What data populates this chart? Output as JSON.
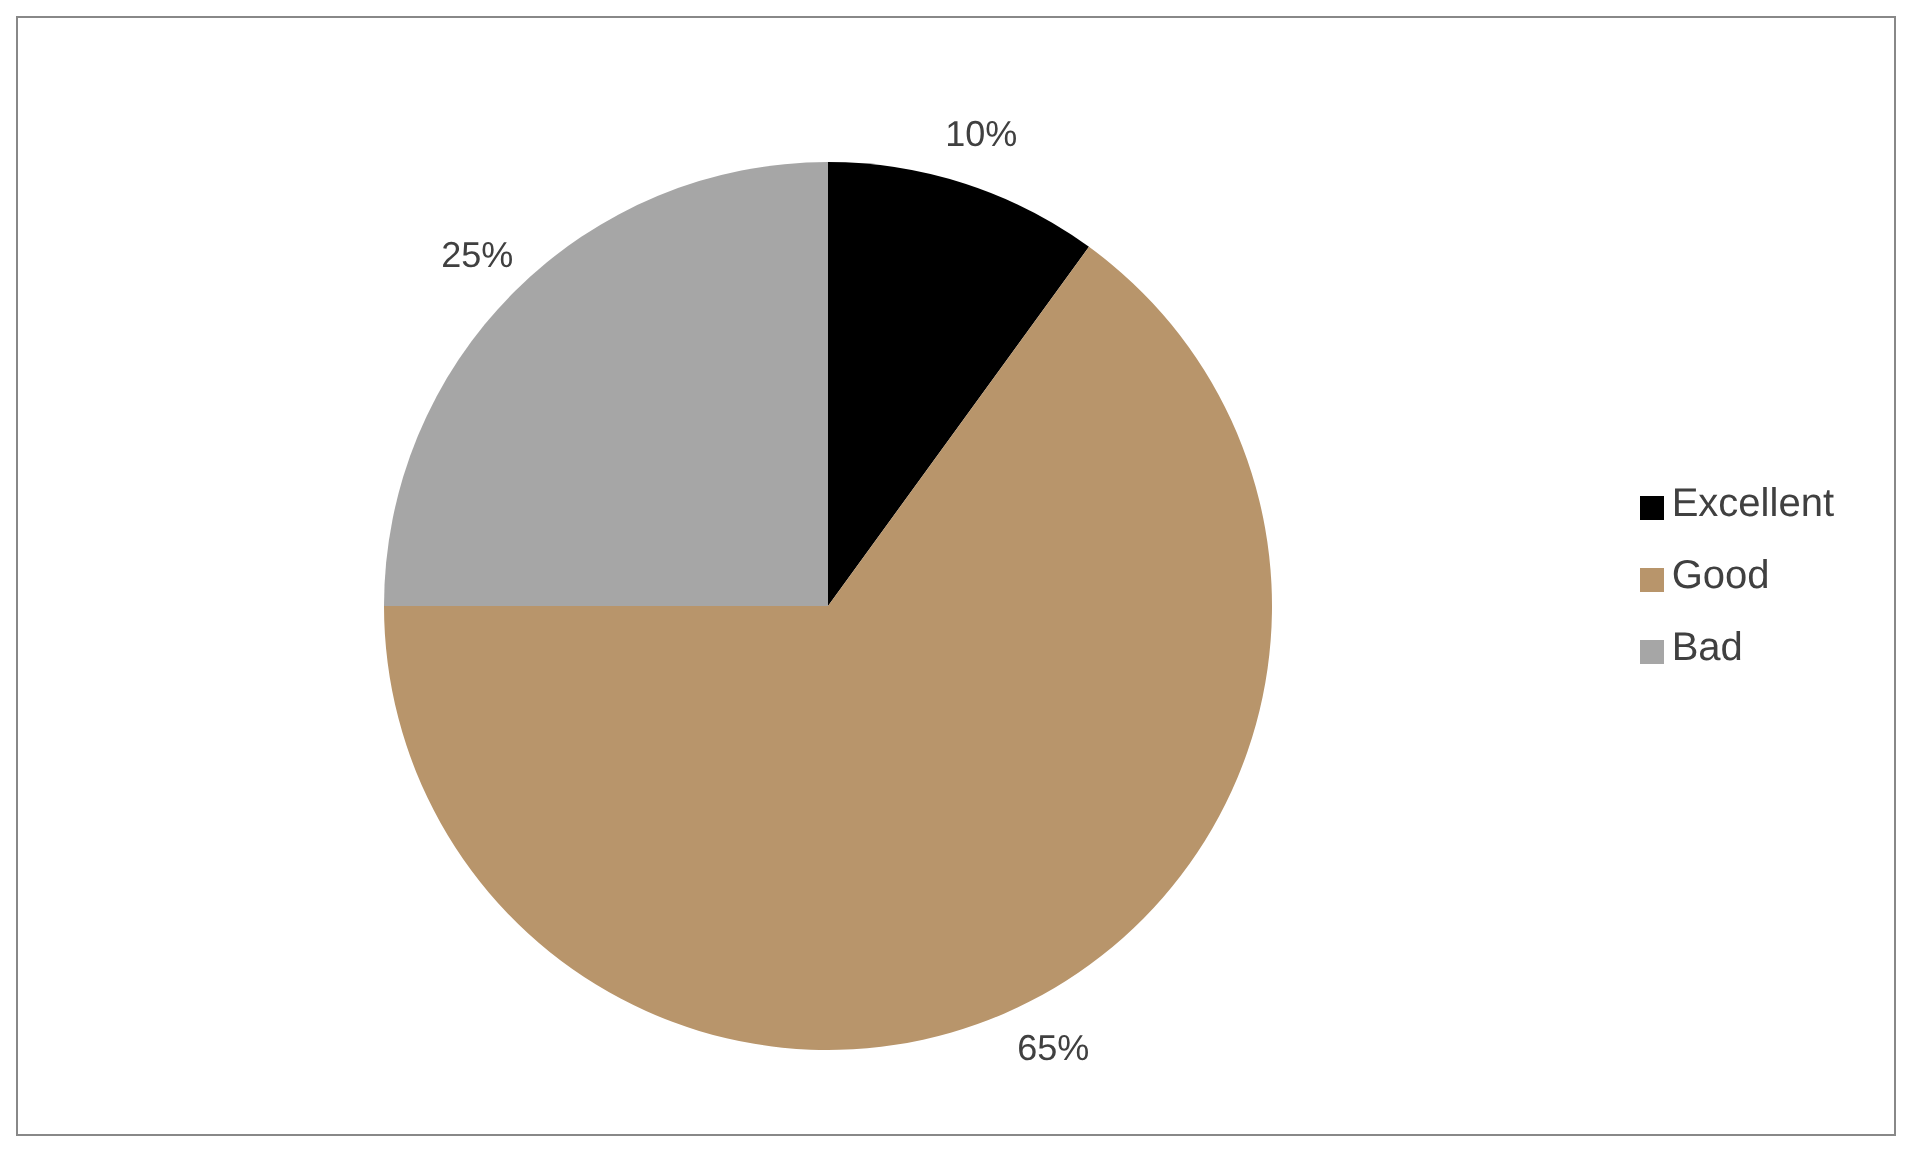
{
  "chart_data": {
    "type": "pie",
    "categories": [
      "Excellent",
      "Good",
      "Bad"
    ],
    "values": [
      10,
      65,
      25
    ],
    "colors": [
      "#000000",
      "#b8956b",
      "#a6a6a6"
    ],
    "value_labels": [
      "10%",
      "65%",
      "25%"
    ],
    "legend": "right"
  }
}
